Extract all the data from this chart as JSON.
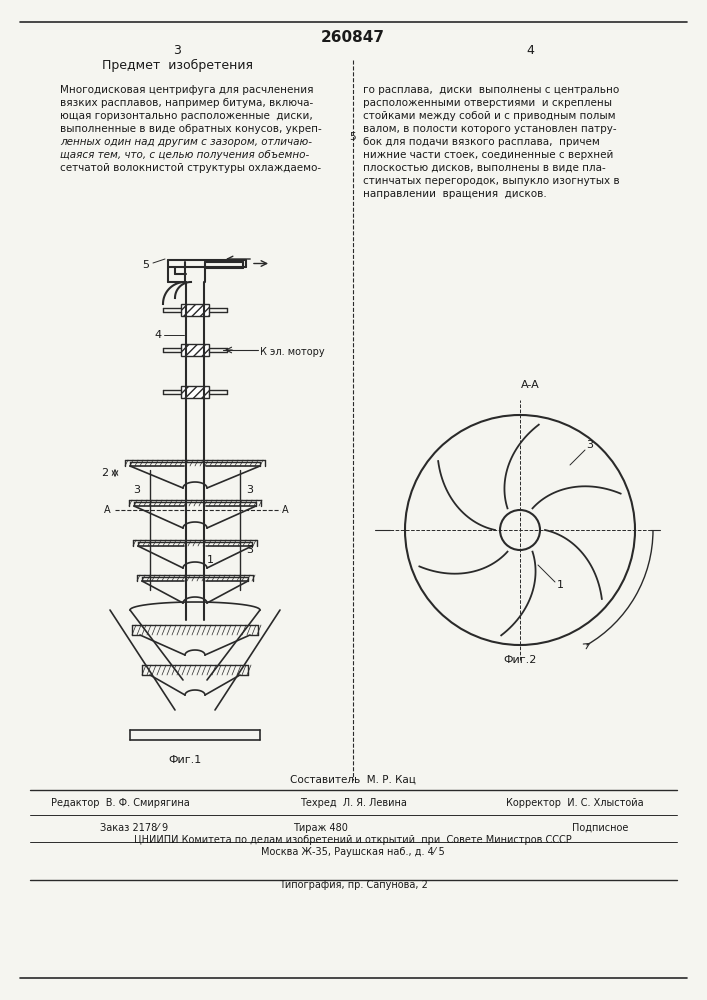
{
  "patent_number": "260847",
  "page_numbers": [
    "3",
    "4"
  ],
  "title_section": "Предмет  изобретения",
  "text_col1": "Многодисковая центрифуга для расчленения\nвязких расплавов, например битума, включа-\nющая горизонтально расположенные  диски,\nвыполненные в виде обратных конусов, укреп-\nленных один над другим с зазором, отличаю-\nщаяся тем, что, с целью получения объемно-\nсетчатой волокнистой структуры охлаждаемо-",
  "text_col2": "го расплава,  диски  выполнены с центрально\nрасположенными отверстиями  и скреплены\nстойками между собой и с приводным полым\nвалом, в полости которого установлен патру-\nбок для подачи вязкого расплава,  причем\nнижние части стоек, соединенные с верхней\nплоскостью дисков, выполнены в виде пла-\nстинчатых перегородок, выпукло изогнутых в\nнаправлении  вращения  дисков.",
  "col2_line_number": "5",
  "fig1_caption": "Фиг.1",
  "fig2_caption": "Фиг.2",
  "fig2_label_AA": "A-A",
  "label_arrow": "К эл. мотору",
  "bottom_composer": "Составитель  М. Р. Кац",
  "bottom_editor": "Редактор  В. Ф. Смирягина",
  "bottom_tech": "Техред  Л. Я. Левина",
  "bottom_corrector": "Корректор  И. С. Хлыстойа",
  "bottom_order": "Заказ 2178⁄ 9",
  "bottom_tirazh": "Тираж 480",
  "bottom_podpisnoe": "Подписное",
  "bottom_cniipi": "ЦНИИПИ Комитета по делам изобретений и открытий  при  Совете Министров СССР",
  "bottom_moscow": "Москва Ж-35, Раушская наб., д. 4⁄ 5",
  "bottom_tipografia": "Типография, пр. Сапунова, 2",
  "bg_color": "#f5f5f0",
  "line_color": "#2a2a2a",
  "text_color": "#1a1a1a"
}
